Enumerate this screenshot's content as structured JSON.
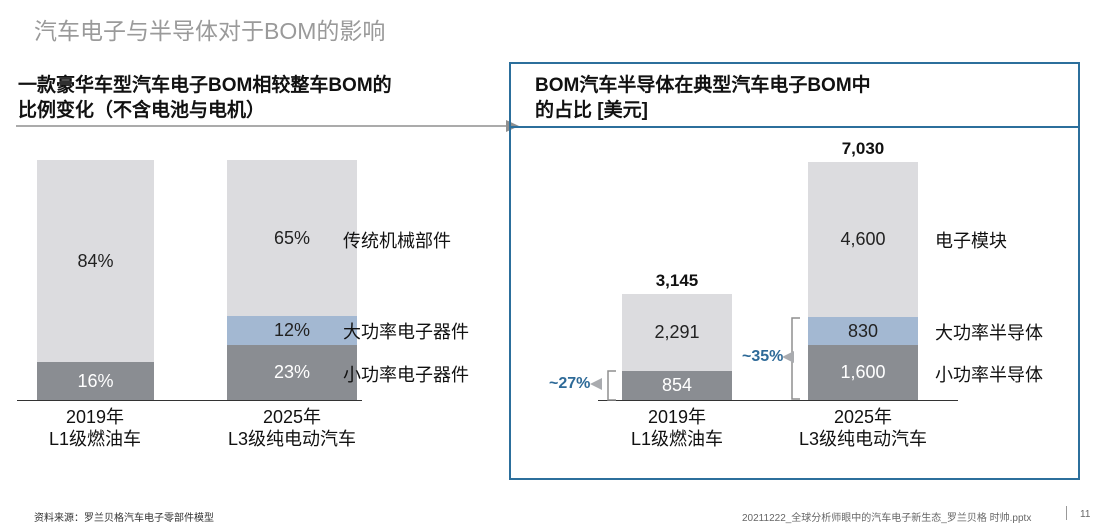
{
  "page": {
    "title": "汽车电子与半导体对于BOM的影响",
    "source": "资料来源：罗兰贝格汽车电子零部件模型",
    "file_name": "20211222_全球分析师眼中的汽车电子新生态_罗兰贝格 时帅.pptx",
    "page_number": "11"
  },
  "colors": {
    "light_gray": "#dcdcdf",
    "blue_gray": "#a3b8d2",
    "dark_gray": "#8a8d92",
    "box_border": "#2c6f9c",
    "annotation_blue": "#2e6a98"
  },
  "chart_data": [
    {
      "type": "bar",
      "stacked": true,
      "unit": "%",
      "title": "一款豪华车型汽车电子BOM相较整车BOM的比例变化（不含电池与电机）",
      "title_lines": [
        "一款豪华车型汽车电子BOM相较整车BOM的",
        "比例变化（不含电池与电机）"
      ],
      "categories": [
        "2019年\nL1级燃油车",
        "2025年\nL3级纯电动汽车"
      ],
      "category_lines": [
        [
          "2019年",
          "L1级燃油车"
        ],
        [
          "2025年",
          "L3级纯电动汽车"
        ]
      ],
      "series": [
        {
          "name": "小功率电子器件",
          "values": [
            16,
            23
          ],
          "labels": [
            "16%",
            "23%"
          ]
        },
        {
          "name": "大功率电子器件",
          "values": [
            0,
            12
          ],
          "labels": [
            "",
            "12%"
          ]
        },
        {
          "name": "传统机械部件",
          "values": [
            84,
            65
          ],
          "labels": [
            "84%",
            "65%"
          ]
        }
      ]
    },
    {
      "type": "bar",
      "stacked": true,
      "unit": "美元",
      "title": "BOM汽车半导体在典型汽车电子BOM中的占比 [美元]",
      "title_lines": [
        "BOM汽车半导体在典型汽车电子BOM中",
        "的占比 [美元]"
      ],
      "categories": [
        "2019年\nL1级燃油车",
        "2025年\nL3级纯电动汽车"
      ],
      "category_lines": [
        [
          "2019年",
          "L1级燃油车"
        ],
        [
          "2025年",
          "L3级纯电动汽车"
        ]
      ],
      "totals": [
        3145,
        7030
      ],
      "total_labels": [
        "3,145",
        "7,030"
      ],
      "series": [
        {
          "name": "小功率半导体",
          "values": [
            854,
            1600
          ],
          "labels": [
            "854",
            "1,600"
          ]
        },
        {
          "name": "大功率半导体",
          "values": [
            0,
            830
          ],
          "labels": [
            "",
            "830"
          ]
        },
        {
          "name": "电子模块",
          "values": [
            2291,
            4600
          ],
          "labels": [
            "2,291",
            "4,600"
          ]
        }
      ],
      "annotations": [
        "~27%",
        "~35%"
      ]
    }
  ]
}
